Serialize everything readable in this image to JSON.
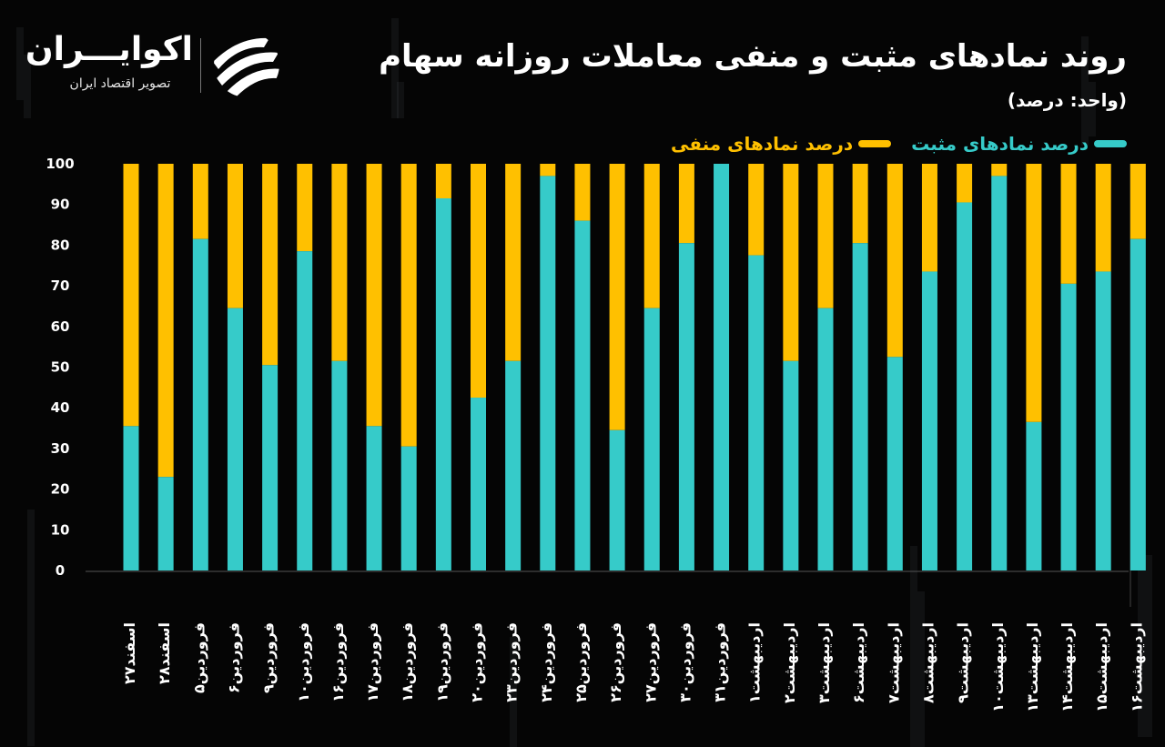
{
  "header": {
    "title": "روند نمادهای مثبت و منفی معاملات روزانه سهام",
    "unit": "(واحد: درصد)"
  },
  "logo": {
    "name": "اکوایـــران",
    "tagline": "تصویر اقتصاد ایران",
    "icon": "swirl-stripes-logo-icon"
  },
  "colors": {
    "positive": "#36CBC9",
    "negative": "#FFC000",
    "background": "#050505"
  },
  "chart_data": {
    "type": "bar",
    "stacked": true,
    "ylim": [
      0,
      100
    ],
    "yticks": [
      "0",
      "10",
      "20",
      "30",
      "40",
      "50",
      "60",
      "70",
      "80",
      "90",
      "100"
    ],
    "legend_position": "top-right",
    "categories": [
      "اسفند۲۷",
      "اسفند۲۸",
      "فروردین۵",
      "فروردین۶",
      "فروردین۹",
      "فروردین۱۰",
      "فروردین۱۶",
      "فروردین۱۷",
      "فروردین۱۸",
      "فروردین۱۹",
      "فروردین۲۰",
      "فروردین۲۳",
      "فروردین۲۴",
      "فروردین۲۵",
      "فروردین۲۶",
      "فروردین۲۷",
      "فروردین۳۰",
      "فروردین۳۱",
      "اردیبهشت۱",
      "اردیبهشت۲",
      "اردیبهشت۳",
      "اردیبهشت۶",
      "اردیبهشت۷",
      "اردیبهشت۸",
      "اردیبهشت۹",
      "اردیبهشت۱۰",
      "اردیبهشت۱۳",
      "اردیبهشت۱۴",
      "اردیبهشت۱۵",
      "اردیبهشت۱۶"
    ],
    "series": [
      {
        "name": "درصد نمادهای مثبت",
        "values": [
          35.5,
          23,
          81.5,
          64.5,
          50.5,
          78.5,
          51.5,
          35.5,
          30.5,
          91.5,
          42.5,
          51.5,
          97,
          86,
          34.5,
          64.5,
          80.5,
          100,
          77.5,
          51.5,
          64.5,
          80.5,
          52.5,
          73.5,
          90.5,
          97,
          36.5,
          70.5,
          73.5,
          81.5
        ]
      },
      {
        "name": "درصد نمادهای منفی",
        "values": [
          64.5,
          77,
          18.5,
          35.5,
          49.5,
          21.5,
          48.5,
          64.5,
          69.5,
          8.5,
          57.5,
          48.5,
          3,
          14,
          65.5,
          35.5,
          19.5,
          0,
          22.5,
          48.5,
          35.5,
          19.5,
          47.5,
          26.5,
          9.5,
          3,
          63.5,
          29.5,
          26.5,
          18.5
        ]
      }
    ]
  }
}
